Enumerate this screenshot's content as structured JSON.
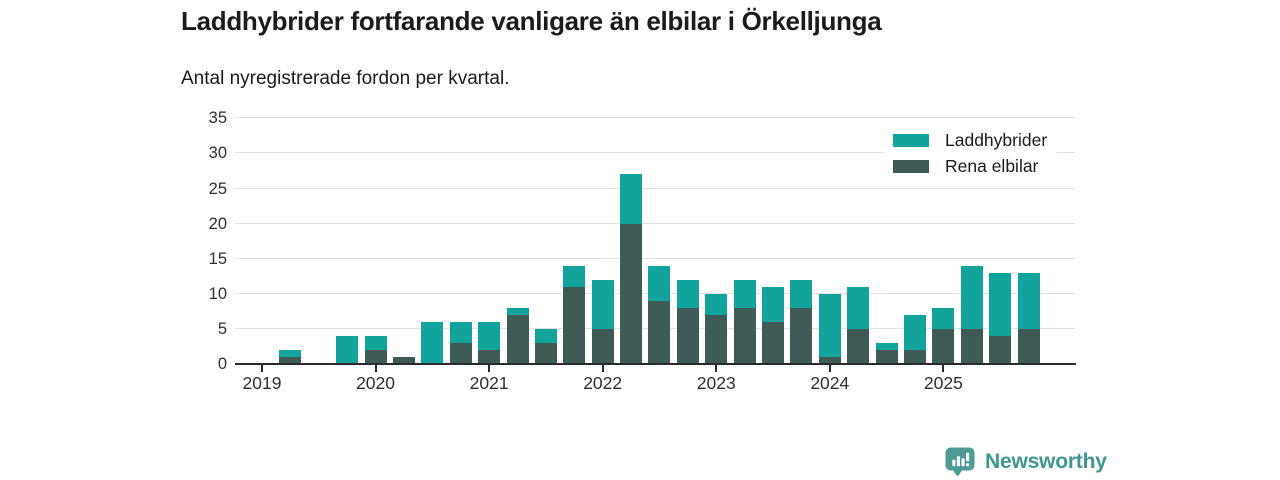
{
  "header": {
    "title": "Laddhybrider fortfarande vanligare än elbilar i Örkelljunga",
    "subtitle": "Antal nyregistrerade fordon per kvartal."
  },
  "chart_data": {
    "type": "bar",
    "stacked": true,
    "title": "Laddhybrider fortfarande vanligare än elbilar i Örkelljunga",
    "subtitle": "Antal nyregistrerade fordon per kvartal.",
    "categories": [
      "2019 Q1",
      "2019 Q2",
      "2019 Q3",
      "2019 Q4",
      "2020 Q1",
      "2020 Q2",
      "2020 Q3",
      "2020 Q4",
      "2021 Q1",
      "2021 Q2",
      "2021 Q3",
      "2021 Q4",
      "2022 Q1",
      "2022 Q2",
      "2022 Q3",
      "2022 Q4",
      "2023 Q1",
      "2023 Q2",
      "2023 Q3",
      "2023 Q4",
      "2024 Q1",
      "2024 Q2",
      "2024 Q3",
      "2024 Q4",
      "2025 Q1",
      "2025 Q2",
      "2025 Q3",
      "2025 Q4"
    ],
    "series": [
      {
        "name": "Laddhybrider",
        "color": "#12a39d",
        "stack_position": "top",
        "values": [
          0,
          1,
          0,
          4,
          2,
          0,
          6,
          3,
          4,
          1,
          2,
          3,
          7,
          7,
          5,
          4,
          3,
          4,
          5,
          4,
          9,
          6,
          1,
          5,
          3,
          9,
          9,
          8
        ]
      },
      {
        "name": "Rena elbilar",
        "color": "#3e5b56",
        "stack_position": "bottom",
        "values": [
          0,
          1,
          0,
          0,
          2,
          1,
          0,
          3,
          2,
          7,
          3,
          11,
          5,
          20,
          9,
          8,
          7,
          8,
          6,
          8,
          1,
          5,
          2,
          2,
          5,
          5,
          4,
          5
        ]
      }
    ],
    "totals": [
      0,
      2,
      0,
      4,
      4,
      1,
      6,
      6,
      6,
      8,
      5,
      14,
      12,
      27,
      14,
      12,
      10,
      12,
      11,
      12,
      10,
      11,
      3,
      7,
      8,
      14,
      13,
      13
    ],
    "ylim": [
      0,
      35
    ],
    "yticks": [
      0,
      5,
      10,
      15,
      20,
      25,
      30,
      35
    ],
    "x_tick_labels": [
      "2019",
      "2020",
      "2021",
      "2022",
      "2023",
      "2024",
      "2025"
    ],
    "grid": "horizontal",
    "legend_position": "top-right"
  },
  "footer": {
    "brand": "Newsworthy",
    "brand_color": "#3e978f",
    "logo_color": "#4f9b93"
  },
  "colors": {
    "gridline": "#e2e2e2",
    "axis": "#2b2b2b",
    "title_text": "#1b1b1b",
    "tick_text": "#2f2f2f",
    "background": "#ffffff"
  }
}
